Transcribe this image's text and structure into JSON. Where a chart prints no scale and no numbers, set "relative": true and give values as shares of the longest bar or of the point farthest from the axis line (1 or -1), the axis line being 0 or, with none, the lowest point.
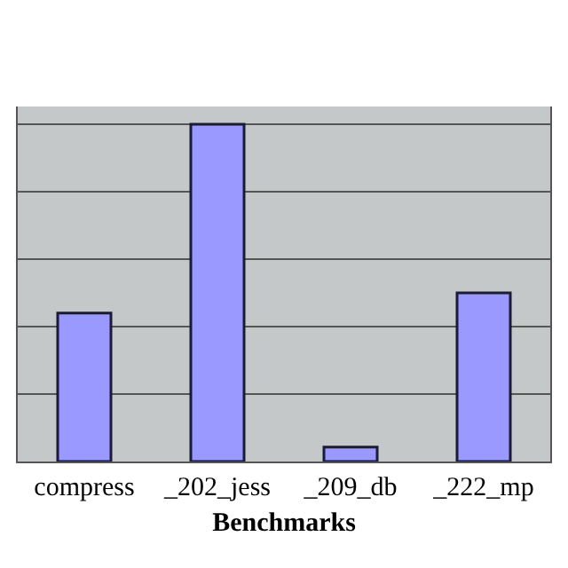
{
  "chart_data": {
    "type": "bar",
    "xlabel": "Benchmarks",
    "categories": [
      "compress",
      "_202_jess",
      "_209_db",
      "_222_mp"
    ],
    "values": [
      0.44,
      1,
      0.043,
      0.5
    ],
    "color": "#9999ff",
    "relative": true,
    "grid": "y"
  }
}
